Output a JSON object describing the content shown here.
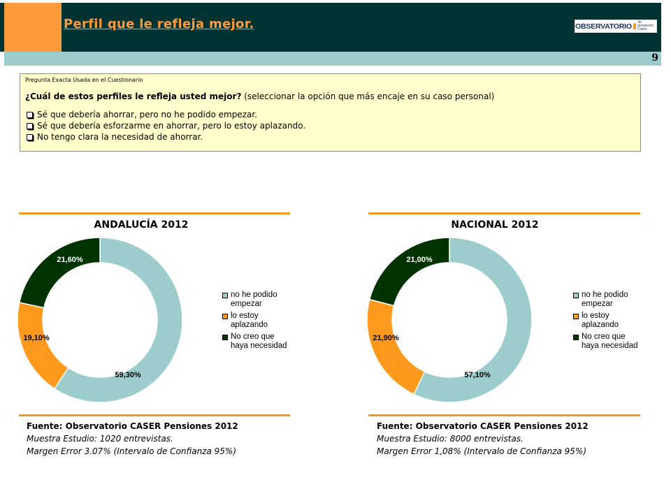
{
  "header": {
    "title": "Perfil que le refleja mejor.",
    "page_number": "9",
    "logo": {
      "main": "OBSERVATORIO",
      "sub_1": "de pensiones",
      "sub_2": "Caser"
    }
  },
  "question": {
    "caption": "Pregunta Exacta Usada en el Cuestionario",
    "text_bold": "¿Cuál de estos perfiles le refleja usted mejor?",
    "text_rest": " (seleccionar la opción que más encaje en su caso personal)",
    "options": [
      "Sé que debería ahorrar, pero no he podido empezar.",
      "Sé que debería esforzarme en ahorrar, pero lo estoy aplazando.",
      "No tengo clara la necesidad de ahorrar."
    ]
  },
  "colors": {
    "series_1": "#9dcccc",
    "series_2": "#fd9a1e",
    "series_3": "#013300",
    "accent": "#f39a1f",
    "header_bg": "#013332"
  },
  "chart_data": [
    {
      "type": "pie",
      "variant": "donut",
      "title": "ANDALUCÍA 2012",
      "categories": [
        "no he podido empezar",
        "lo estoy aplazando",
        "No creo que haya necesidad"
      ],
      "values": [
        59.3,
        19.1,
        21.6
      ],
      "data_labels": [
        "59,30%",
        "19,10%",
        "21,60%"
      ],
      "legend": {
        "placement": "right",
        "labels": [
          "no he podido empezar",
          "lo estoy aplazando",
          "No creo que haya necesidad"
        ]
      }
    },
    {
      "type": "pie",
      "variant": "donut",
      "title": "NACIONAL 2012",
      "categories": [
        "no he podido empezar",
        "lo estoy aplazando",
        "No creo que haya necesidad"
      ],
      "values": [
        57.1,
        21.9,
        21.0
      ],
      "data_labels": [
        "57,10%",
        "21,90%",
        "21,00%"
      ],
      "legend": {
        "placement": "right",
        "labels": [
          "no he podido empezar",
          "lo estoy aplazando",
          "No creo que haya necesidad"
        ]
      }
    }
  ],
  "sources": [
    {
      "title": "Fuente: Observatorio CASER Pensiones 2012",
      "sample": "Muestra Estudio: 1020 entrevistas.",
      "margin": "Margen Error 3.07% (Intervalo de Confianza 95%)"
    },
    {
      "title": "Fuente: Observatorio CASER Pensiones 2012",
      "sample": "Muestra Estudio: 8000 entrevistas.",
      "margin": "Margen Error 1,08% (Intervalo de Confianza 95%)"
    }
  ]
}
